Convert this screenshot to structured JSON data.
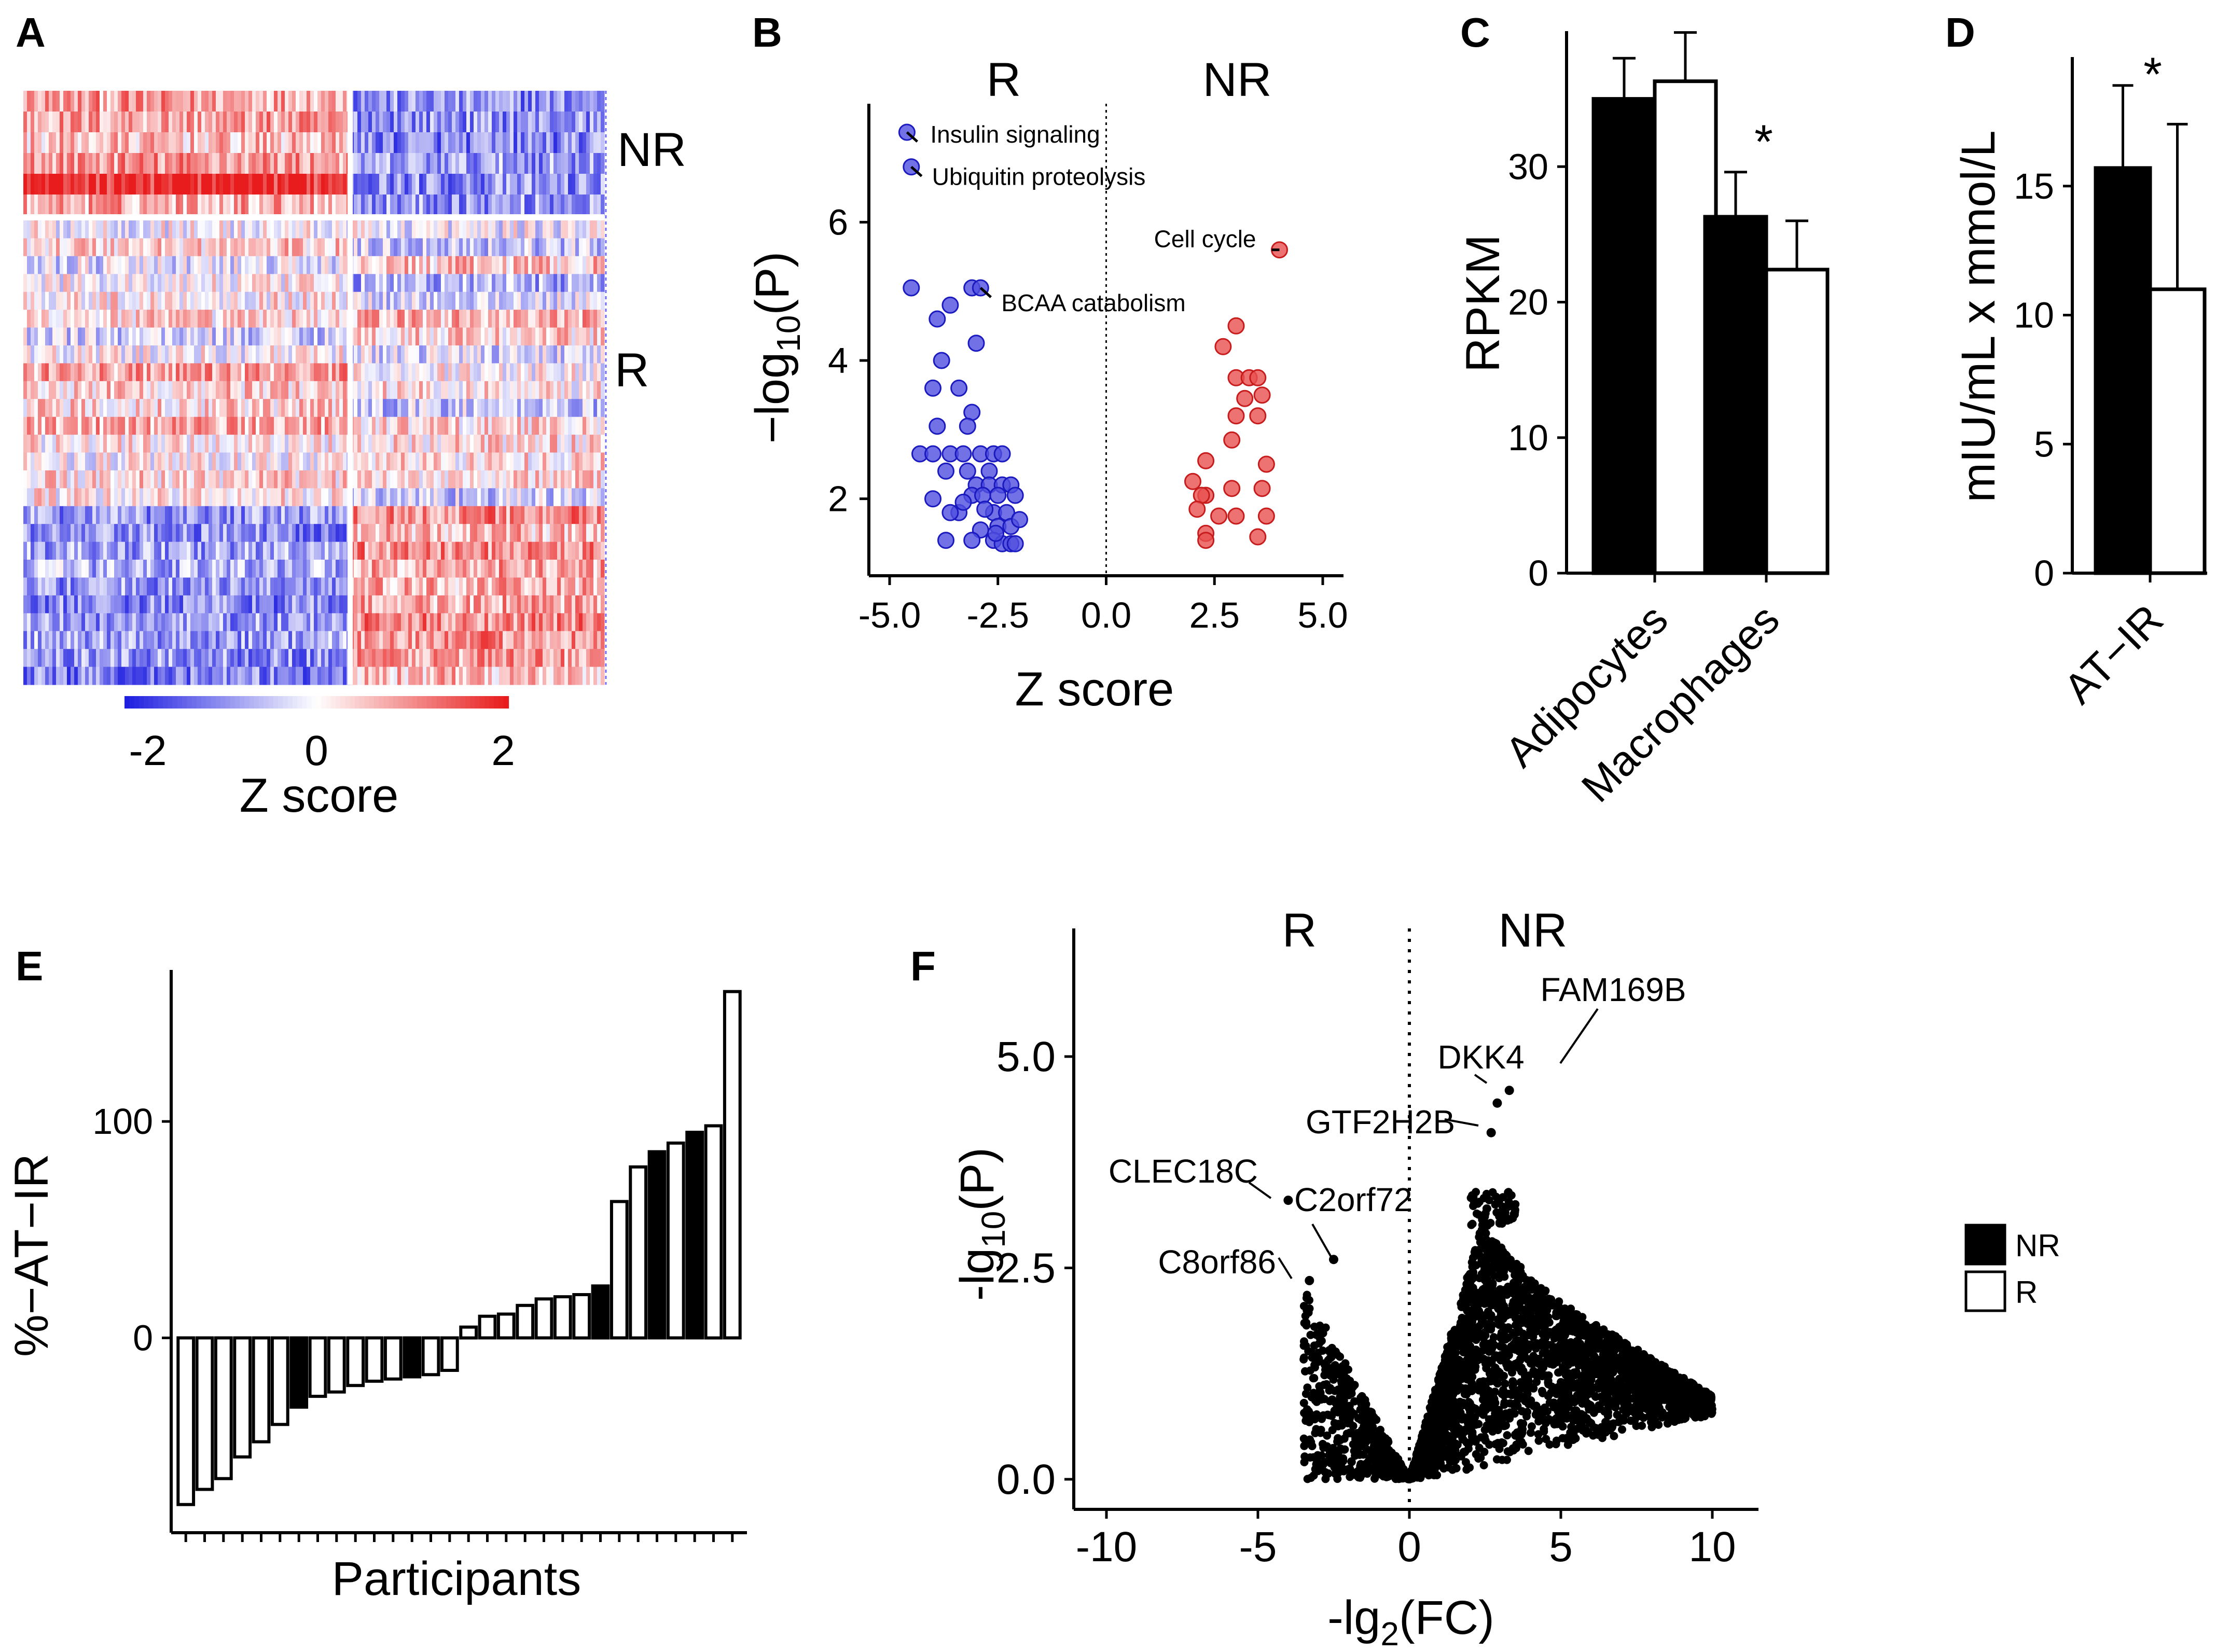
{
  "figure": {
    "panels": [
      "A",
      "B",
      "C",
      "D",
      "E",
      "F"
    ]
  },
  "colors": {
    "low": "#1f1fe0",
    "mid": "#ffffff",
    "high": "#e81c1c",
    "blue_point": "#4f4fe0",
    "red_point": "#e85050",
    "black": "#000000"
  },
  "chart_data": [
    {
      "panel": "A",
      "type": "heatmap",
      "row_groups": [
        "NR",
        "R"
      ],
      "colorbar": {
        "title": "Z score",
        "ticks": [
          "-2",
          "0",
          "2"
        ],
        "range": [
          -2,
          2
        ]
      }
    },
    {
      "panel": "B",
      "type": "scatter",
      "xlabel": "Z score",
      "ylabel": "−log",
      "ylabel_sub": "10",
      "ylabel_tail": "(P)",
      "group_labels": [
        "R",
        "NR"
      ],
      "xlim": [
        -5.0,
        5.0
      ],
      "ylim": [
        1.0,
        7.6
      ],
      "xticks": [
        "-5.0",
        "-2.5",
        "0.0",
        "2.5",
        "5.0"
      ],
      "xtick_values": [
        -5.0,
        -2.5,
        0.0,
        2.5,
        5.0
      ],
      "yticks": [
        "2",
        "4",
        "6"
      ],
      "ytick_values": [
        2,
        4,
        6
      ],
      "annotations": [
        {
          "label": "Insulin signaling",
          "x": -4.6,
          "y": 7.3
        },
        {
          "label": "Ubiquitin proteolysis",
          "x": -4.5,
          "y": 6.8
        },
        {
          "label": "Cell cycle",
          "x": 4.0,
          "y": 5.6
        },
        {
          "label": "BCAA catabolism",
          "x": -2.9,
          "y": 5.05
        }
      ],
      "series": [
        {
          "name": "R",
          "points": [
            [
              -4.6,
              7.3
            ],
            [
              -4.5,
              6.8
            ],
            [
              -4.5,
              5.05
            ],
            [
              -3.1,
              5.05
            ],
            [
              -2.9,
              5.05
            ],
            [
              -3.6,
              4.8
            ],
            [
              -3.9,
              4.6
            ],
            [
              -3.8,
              4.0
            ],
            [
              -3.0,
              4.25
            ],
            [
              -4.0,
              3.6
            ],
            [
              -3.4,
              3.6
            ],
            [
              -3.1,
              3.25
            ],
            [
              -3.9,
              3.05
            ],
            [
              -3.2,
              3.05
            ],
            [
              -4.3,
              2.65
            ],
            [
              -4.0,
              2.65
            ],
            [
              -3.6,
              2.65
            ],
            [
              -3.3,
              2.65
            ],
            [
              -2.9,
              2.65
            ],
            [
              -2.6,
              2.65
            ],
            [
              -2.4,
              2.65
            ],
            [
              -3.7,
              2.4
            ],
            [
              -3.2,
              2.4
            ],
            [
              -2.7,
              2.4
            ],
            [
              -3.0,
              2.2
            ],
            [
              -2.7,
              2.2
            ],
            [
              -2.4,
              2.2
            ],
            [
              -2.2,
              2.2
            ],
            [
              -3.1,
              2.05
            ],
            [
              -2.85,
              2.05
            ],
            [
              -2.5,
              2.05
            ],
            [
              -2.1,
              2.05
            ],
            [
              -2.6,
              1.8
            ],
            [
              -2.3,
              1.8
            ],
            [
              -3.4,
              1.8
            ],
            [
              -2.5,
              1.6
            ],
            [
              -2.2,
              1.6
            ],
            [
              -2.9,
              1.55
            ],
            [
              -2.6,
              1.4
            ],
            [
              -2.4,
              1.35
            ],
            [
              -2.2,
              1.35
            ],
            [
              -2.1,
              1.35
            ],
            [
              -3.7,
              1.4
            ],
            [
              -3.1,
              1.4
            ],
            [
              -3.6,
              1.8
            ],
            [
              -2.8,
              1.85
            ],
            [
              -4.0,
              2.0
            ],
            [
              -3.3,
              1.95
            ],
            [
              -2.0,
              1.7
            ],
            [
              -2.55,
              1.5
            ]
          ]
        },
        {
          "name": "NR",
          "points": [
            [
              4.0,
              5.6
            ],
            [
              3.0,
              4.5
            ],
            [
              2.7,
              4.2
            ],
            [
              3.0,
              3.75
            ],
            [
              3.3,
              3.75
            ],
            [
              3.5,
              3.75
            ],
            [
              3.6,
              3.5
            ],
            [
              3.2,
              3.45
            ],
            [
              3.0,
              3.2
            ],
            [
              3.5,
              3.2
            ],
            [
              2.9,
              2.85
            ],
            [
              2.3,
              2.55
            ],
            [
              3.7,
              2.5
            ],
            [
              2.0,
              2.25
            ],
            [
              2.3,
              2.05
            ],
            [
              2.2,
              2.05
            ],
            [
              2.9,
              2.15
            ],
            [
              3.6,
              2.15
            ],
            [
              2.1,
              1.85
            ],
            [
              2.6,
              1.75
            ],
            [
              3.0,
              1.75
            ],
            [
              3.7,
              1.75
            ],
            [
              2.3,
              1.5
            ],
            [
              2.3,
              1.4
            ],
            [
              3.5,
              1.45
            ]
          ]
        }
      ]
    },
    {
      "panel": "C",
      "type": "bar",
      "ylabel": "RPKM",
      "categories": [
        "Adipocytes",
        "Macrophages"
      ],
      "ylim": [
        0,
        40
      ],
      "yticks": [
        "0",
        "10",
        "20",
        "30"
      ],
      "ytick_values": [
        0,
        10,
        20,
        30
      ],
      "series": [
        {
          "name": "NR",
          "values": [
            35.0,
            26.3
          ],
          "errors": [
            3.0,
            3.3
          ]
        },
        {
          "name": "R",
          "values": [
            36.3,
            22.4
          ],
          "errors": [
            3.6,
            3.6
          ]
        }
      ],
      "significance": [
        {
          "category": "Macrophages",
          "label": "*"
        }
      ]
    },
    {
      "panel": "D",
      "type": "bar",
      "ylabel": "mIU/mL x mmol/L",
      "categories": [
        "AT−IR"
      ],
      "ylim": [
        0,
        20
      ],
      "yticks": [
        "0",
        "5",
        "10",
        "15"
      ],
      "ytick_values": [
        0,
        5,
        10,
        15
      ],
      "series": [
        {
          "name": "NR",
          "values": [
            15.7
          ],
          "errors": [
            3.2
          ]
        },
        {
          "name": "R",
          "values": [
            11.0
          ],
          "errors": [
            6.4
          ]
        }
      ],
      "significance": [
        {
          "category": "AT−IR",
          "label": "*"
        }
      ]
    },
    {
      "panel": "E",
      "type": "bar",
      "xlabel": "Participants",
      "ylabel": "%−AT−IR",
      "ylim": [
        -90,
        170
      ],
      "yticks": [
        "0",
        "100"
      ],
      "ytick_values": [
        0,
        100
      ],
      "values": [
        -77,
        -70,
        -65,
        -55,
        -48,
        -40,
        -32,
        -27,
        -25,
        -22,
        -20,
        -19,
        -18,
        -17,
        -15,
        5,
        10,
        11,
        15,
        18,
        19,
        20,
        24,
        63,
        79,
        86,
        90,
        95,
        98,
        160
      ],
      "groups": [
        "R",
        "R",
        "R",
        "R",
        "R",
        "R",
        "NR",
        "R",
        "R",
        "R",
        "R",
        "R",
        "NR",
        "R",
        "R",
        "R",
        "R",
        "R",
        "R",
        "R",
        "R",
        "R",
        "NR",
        "R",
        "R",
        "NR",
        "R",
        "NR",
        "R",
        "R"
      ]
    },
    {
      "panel": "F",
      "type": "scatter",
      "xlabel": "-lg",
      "xlabel_sub": "2",
      "xlabel_tail": "(FC)",
      "ylabel": "-lg",
      "ylabel_sub": "10",
      "ylabel_tail": "(P)",
      "group_labels": [
        "R",
        "NR"
      ],
      "xlim": [
        -11,
        11
      ],
      "ylim": [
        -0.25,
        6.3
      ],
      "xticks": [
        "-10",
        "-5",
        "0",
        "5",
        "10"
      ],
      "xtick_values": [
        -10,
        -5,
        0,
        5,
        10
      ],
      "yticks": [
        "0.0",
        "2.5",
        "5.0"
      ],
      "ytick_values": [
        0,
        2.5,
        5.0
      ],
      "annotations": [
        {
          "label": "FAM169B",
          "x": 3.3,
          "y": 4.6
        },
        {
          "label": "DKK4",
          "x": 2.9,
          "y": 4.45
        },
        {
          "label": "GTF2H2B",
          "x": 2.7,
          "y": 4.1
        },
        {
          "label": "CLEC18C",
          "x": -4.0,
          "y": 3.3
        },
        {
          "label": "C2orf72",
          "x": -2.5,
          "y": 2.6
        },
        {
          "label": "C8orf86",
          "x": -3.3,
          "y": 2.35
        }
      ]
    }
  ],
  "legend": [
    {
      "name": "NR",
      "color": "#000000"
    },
    {
      "name": "R",
      "color": "#ffffff"
    }
  ]
}
